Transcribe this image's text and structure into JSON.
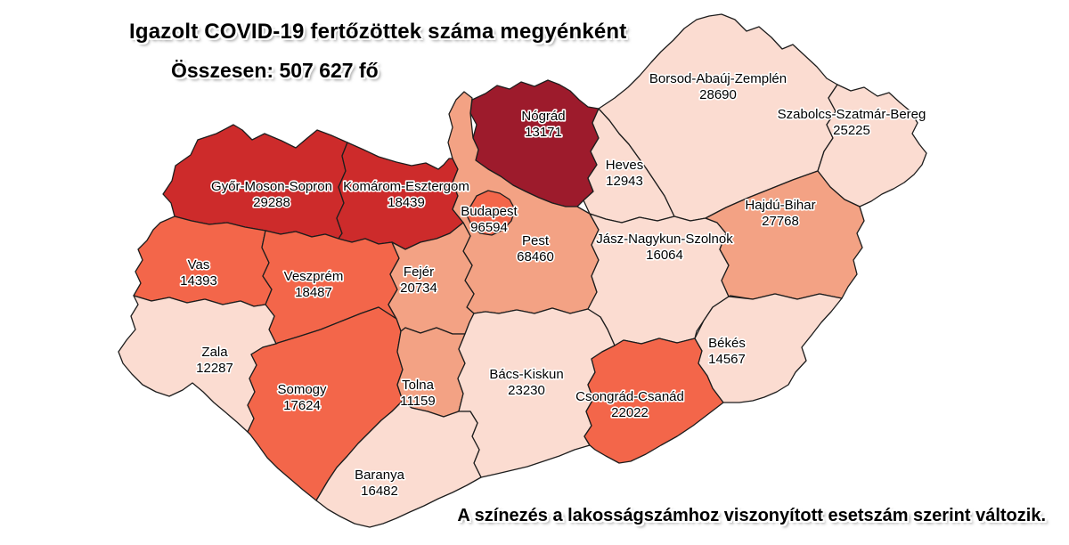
{
  "title": "Igazolt COVID-19 fertőzöttek száma megyénként",
  "total_label": "Összesen: 507 627 fő",
  "footnote": "A színezés a lakosságszámhoz viszonyított esetszám szerint változik.",
  "palette": {
    "background": "#ffffff",
    "border": "#1d1d1d",
    "text": "#000000",
    "levels": [
      "#fbdcd1",
      "#f3a284",
      "#f3664a",
      "#cd2b2b",
      "#9d1b2c"
    ]
  },
  "counties": [
    {
      "id": "gyor-moson-sopron",
      "name": "Győr-Moson-Sopron",
      "value": "29288",
      "level": 3
    },
    {
      "id": "komarom-esztergom",
      "name": "Komárom-Esztergom",
      "value": "18439",
      "level": 3
    },
    {
      "id": "nograd",
      "name": "Nógrád",
      "value": "13171",
      "level": 4
    },
    {
      "id": "heves",
      "name": "Heves",
      "value": "12943",
      "level": 0
    },
    {
      "id": "borsod-abauj-zemplen",
      "name": "Borsod-Abaúj-Zemplén",
      "value": "28690",
      "level": 0
    },
    {
      "id": "szabolcs-szatmar-bereg",
      "name": "Szabolcs-Szatmár-Bereg",
      "value": "25225",
      "level": 0
    },
    {
      "id": "pest",
      "name": "Pest",
      "value": "68460",
      "level": 1
    },
    {
      "id": "budapest",
      "name": "Budapest",
      "value": "96594",
      "level": 2
    },
    {
      "id": "jasz-nagykun-szolnok",
      "name": "Jász-Nagykun-Szolnok",
      "value": "16064",
      "level": 0
    },
    {
      "id": "hajdu-bihar",
      "name": "Hajdú-Bihar",
      "value": "27768",
      "level": 1
    },
    {
      "id": "vas",
      "name": "Vas",
      "value": "14393",
      "level": 2
    },
    {
      "id": "veszprem",
      "name": "Veszprém",
      "value": "18487",
      "level": 2
    },
    {
      "id": "fejer",
      "name": "Fejér",
      "value": "20734",
      "level": 1
    },
    {
      "id": "zala",
      "name": "Zala",
      "value": "12287",
      "level": 0
    },
    {
      "id": "somogy",
      "name": "Somogy",
      "value": "17624",
      "level": 2
    },
    {
      "id": "tolna",
      "name": "Tolna",
      "value": "11159",
      "level": 1
    },
    {
      "id": "bacs-kiskun",
      "name": "Bács-Kiskun",
      "value": "23230",
      "level": 0
    },
    {
      "id": "csongrad-csanad",
      "name": "Csongrád-Csanád",
      "value": "22022",
      "level": 2
    },
    {
      "id": "bekes",
      "name": "Békés",
      "value": "14567",
      "level": 0
    },
    {
      "id": "baranya",
      "name": "Baranya",
      "value": "16482",
      "level": 0
    }
  ]
}
